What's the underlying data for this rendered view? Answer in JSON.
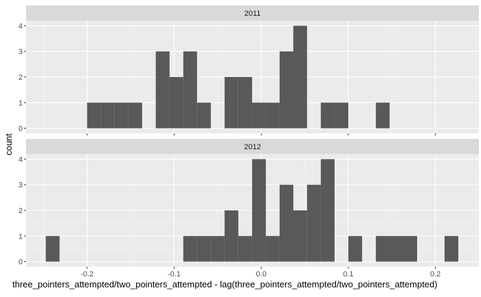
{
  "chart_data": {
    "type": "bar",
    "subtype": "histogram-faceted",
    "xlabel": "three_pointers_attempted/two_pointers_attempted - lag(three_pointers_attempted/two_pointers_attempted)",
    "ylabel": "count",
    "xlim": [
      -0.27,
      0.25
    ],
    "ylim": [
      -0.2,
      4.2
    ],
    "x_ticks": [
      -0.2,
      -0.1,
      0.0,
      0.1,
      0.2
    ],
    "x_tick_labels": [
      "-0.2",
      "-0.1",
      "0.0",
      "0.1",
      "0.2"
    ],
    "y_ticks": [
      0,
      1,
      2,
      3,
      4
    ],
    "y_tick_labels": [
      "0",
      "1",
      "2",
      "3",
      "4"
    ],
    "bin_width": 0.0158,
    "colors": {
      "bar": "#595959",
      "panel": "#ebebeb",
      "strip": "#d9d9d9",
      "grid_major": "#ffffff"
    },
    "panels": [
      {
        "title": "2011",
        "bin_starts": [
          -0.2,
          -0.1842,
          -0.1684,
          -0.1526,
          -0.1211,
          -0.1053,
          -0.0895,
          -0.0737,
          -0.0421,
          -0.0263,
          -0.0105,
          0.0053,
          0.0211,
          0.0368,
          0.0684,
          0.0842,
          0.1316
        ],
        "counts": [
          1,
          1,
          1,
          1,
          3,
          2,
          3,
          1,
          2,
          2,
          1,
          1,
          3,
          4,
          1,
          1,
          1
        ]
      },
      {
        "title": "2012",
        "bin_starts": [
          -0.2474,
          -0.0895,
          -0.0737,
          -0.0579,
          -0.0421,
          -0.0263,
          -0.0105,
          0.0053,
          0.0211,
          0.0368,
          0.0526,
          0.0684,
          0.1,
          0.1316,
          0.1474,
          0.1632,
          0.2105
        ],
        "counts": [
          1,
          1,
          1,
          1,
          2,
          1,
          4,
          1,
          3,
          2,
          3,
          4,
          1,
          1,
          1,
          1,
          1
        ]
      }
    ]
  }
}
